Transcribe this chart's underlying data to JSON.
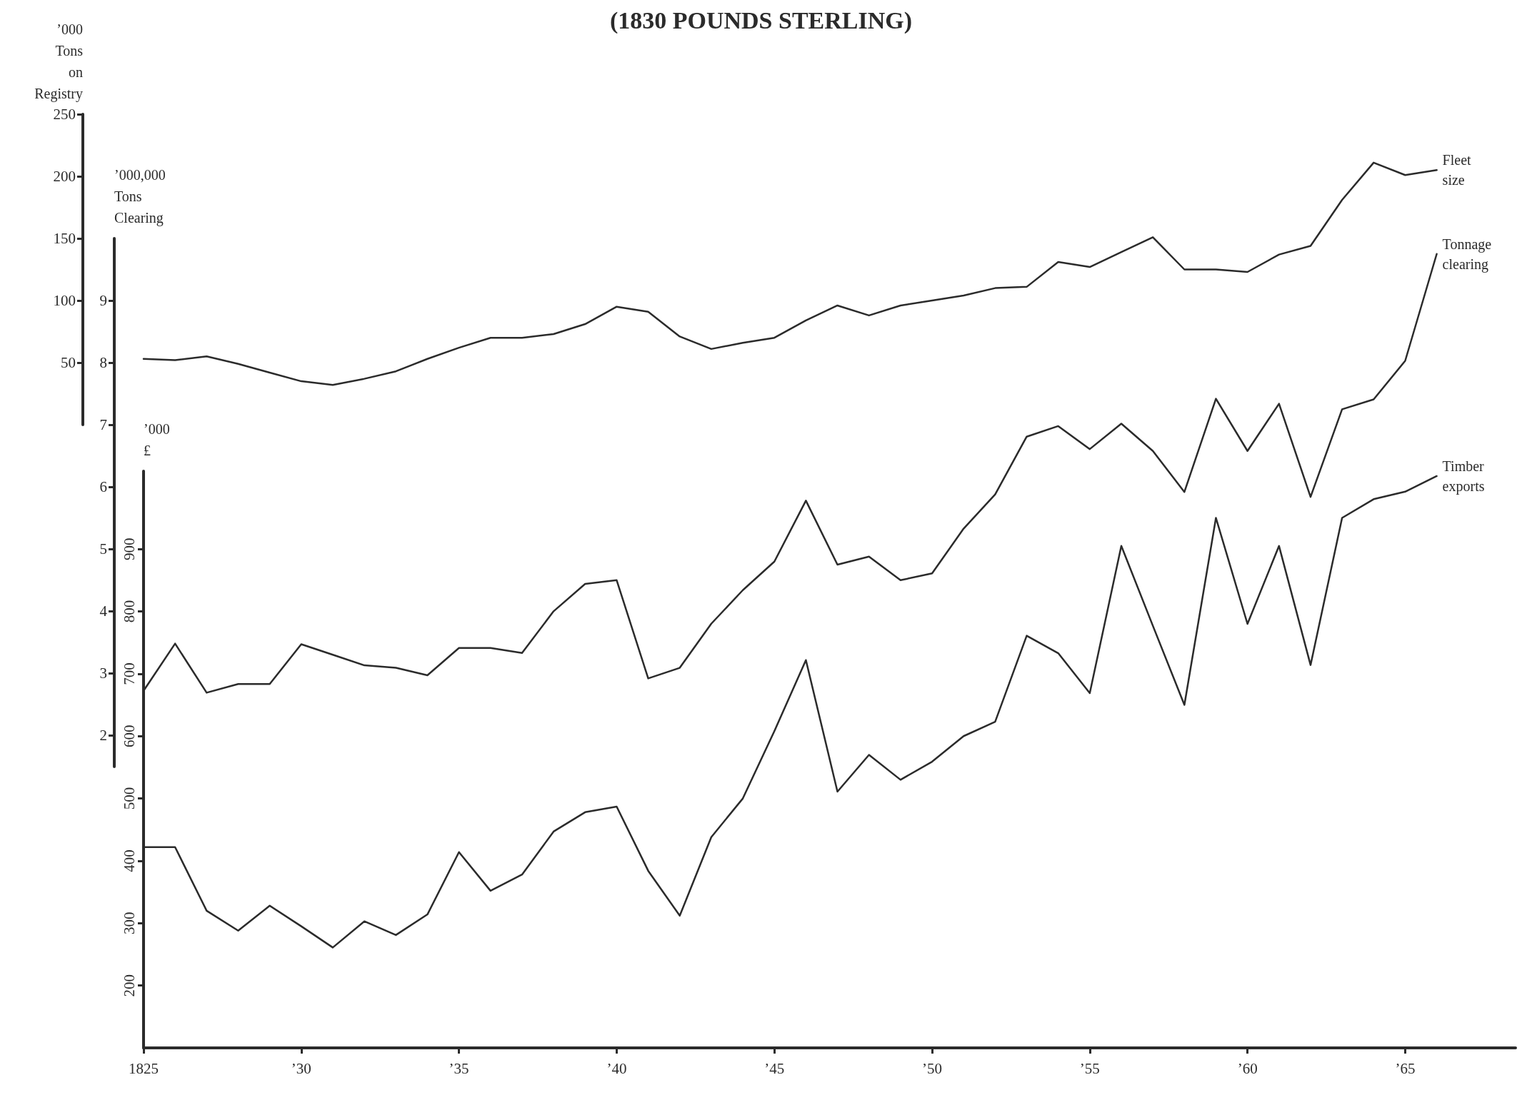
{
  "chart_data": [
    {
      "type": "line",
      "title": "(1830 POUNDS STERLING)",
      "ylabel": "’000\nTons\non\nRegistry",
      "categories": [
        null,
        null,
        null,
        null,
        null,
        null,
        null,
        null,
        null,
        null,
        null,
        null,
        null,
        null,
        null,
        null,
        null,
        null,
        null,
        null,
        null,
        null,
        null,
        null,
        null,
        null,
        null,
        null,
        null,
        null,
        null,
        null,
        null,
        null,
        null,
        null,
        null,
        null,
        null,
        null,
        null,
        null
      ],
      "ylim": [
        0,
        250
      ],
      "yticks": [
        50,
        100,
        150,
        200,
        250
      ],
      "tick_labels": "y",
      "series": [
        {
          "name": "Fleet size",
          "color": "#2b2b2b",
          "values": [
            53,
            52,
            55,
            49,
            42,
            35,
            32,
            37,
            43,
            53,
            62,
            70,
            70,
            73,
            81,
            95,
            91,
            71,
            61,
            66,
            70,
            84,
            96,
            88,
            96,
            100,
            104,
            110,
            111,
            131,
            127,
            139,
            151,
            125,
            125,
            123,
            137,
            144,
            181,
            211,
            201,
            205
          ]
        }
      ],
      "grid": false,
      "legend": false,
      "marker": "none",
      "line_style": "solid"
    },
    {
      "type": "line",
      "ylabel": "’000,000\nTons\nClearing",
      "categories": [
        null,
        null,
        null,
        null,
        null,
        null,
        null,
        null,
        null,
        null,
        null,
        null,
        null,
        null,
        null,
        null,
        null,
        null,
        null,
        null,
        null,
        null,
        null,
        null,
        null,
        null,
        null,
        null,
        null,
        null,
        null,
        null,
        null,
        null,
        null,
        null,
        null,
        null,
        null,
        null,
        null,
        null
      ],
      "ylim": [
        1.5,
        10
      ],
      "yticks": [
        2,
        3,
        4,
        5,
        6,
        7,
        8,
        9
      ],
      "tick_labels": "y",
      "series": [
        {
          "name": "Tonnage clearing",
          "color": "#2b2b2b",
          "values": [
            2.72,
            3.48,
            2.69,
            2.83,
            2.83,
            3.47,
            3.3,
            3.13,
            3.09,
            2.97,
            3.41,
            3.41,
            3.33,
            4.0,
            4.44,
            4.5,
            2.92,
            3.09,
            3.8,
            4.34,
            4.8,
            5.78,
            4.75,
            4.88,
            4.5,
            4.61,
            5.33,
            5.88,
            6.81,
            6.98,
            6.61,
            7.02,
            6.58,
            5.92,
            7.42,
            6.58,
            7.34,
            5.84,
            7.25,
            7.41,
            8.03,
            9.75
          ]
        }
      ],
      "grid": false,
      "legend": false,
      "marker": "none",
      "line_style": "solid"
    },
    {
      "type": "line",
      "ylabel": "’000\n£",
      "x": [
        1825,
        1826,
        1827,
        1828,
        1829,
        1830,
        1831,
        1832,
        1833,
        1834,
        1835,
        1836,
        1837,
        1838,
        1839,
        1840,
        1841,
        1842,
        1843,
        1844,
        1845,
        1846,
        1847,
        1848,
        1849,
        1850,
        1851,
        1852,
        1853,
        1854,
        1855,
        1856,
        1857,
        1858,
        1859,
        1860,
        1861,
        1862,
        1863,
        1864,
        1865,
        1866
      ],
      "xlim": [
        1825,
        1868.5
      ],
      "xticks": [
        {
          "value": 1825,
          "label": "1825"
        },
        {
          "value": 1830,
          "label": "’30"
        },
        {
          "value": 1835,
          "label": "’35"
        },
        {
          "value": 1840,
          "label": "’40"
        },
        {
          "value": 1845,
          "label": "’45"
        },
        {
          "value": 1850,
          "label": "’50"
        },
        {
          "value": 1855,
          "label": "’55"
        },
        {
          "value": 1860,
          "label": "’60"
        },
        {
          "value": 1865,
          "label": "’65"
        }
      ],
      "ylim": [
        100,
        1025
      ],
      "yticks": [
        200,
        300,
        400,
        500,
        600,
        700,
        800,
        900
      ],
      "series": [
        {
          "name": "Timber exports",
          "color": "#2b2b2b",
          "values": [
            422,
            422,
            320,
            288,
            328,
            295,
            261,
            303,
            281,
            314,
            414,
            352,
            378,
            447,
            478,
            487,
            384,
            312,
            438,
            500,
            608,
            722,
            511,
            570,
            530,
            559,
            600,
            623,
            761,
            733,
            669,
            905,
            777,
            650,
            950,
            780,
            905,
            714,
            950,
            980,
            992,
            1017
          ]
        }
      ],
      "grid": false,
      "legend": false,
      "marker": "none",
      "line_style": "solid"
    }
  ]
}
